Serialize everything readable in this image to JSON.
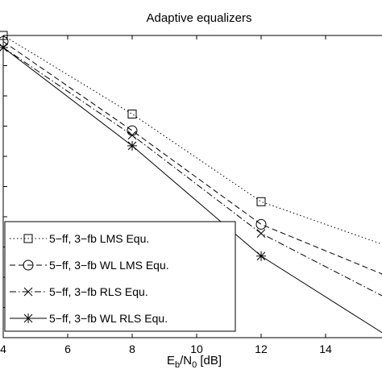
{
  "chart_data": {
    "type": "line",
    "title": "Adaptive equalizers",
    "xlabel": {
      "base": "E",
      "base_sub": "b",
      "slash": "/N",
      "slash_sub": "0",
      "unit": " [dB]"
    },
    "ylabel": "",
    "xlim": [
      4,
      16
    ],
    "ylim": [
      0,
      1
    ],
    "xticks": [
      4,
      6,
      8,
      10,
      12,
      14
    ],
    "xtick_labels": [
      "4",
      "6",
      "8",
      "10",
      "12",
      "14"
    ],
    "grid": false,
    "legend_position": "bottom-left",
    "series": [
      {
        "name": "5−ff, 3−fb LMS Equ.",
        "marker": "square",
        "line_style": "dotted",
        "x": [
          4,
          8,
          12,
          16
        ],
        "y": [
          1.0,
          0.74,
          0.45,
          0.3
        ]
      },
      {
        "name": "5−ff, 3−fb WL LMS Equ.",
        "marker": "circle",
        "line_style": "dashed",
        "x": [
          4,
          8,
          12,
          16
        ],
        "y": [
          0.98,
          0.685,
          0.375,
          0.2
        ]
      },
      {
        "name": "5−ff, 3−fb RLS Equ.",
        "marker": "x",
        "line_style": "dashdot",
        "x": [
          4,
          8,
          12,
          16
        ],
        "y": [
          0.96,
          0.67,
          0.345,
          0.125
        ]
      },
      {
        "name": "5−ff, 3−fb WL RLS Equ.",
        "marker": "asterisk",
        "line_style": "solid",
        "x": [
          4,
          8,
          12,
          16
        ],
        "y": [
          0.96,
          0.635,
          0.27,
          0.0
        ]
      }
    ]
  }
}
